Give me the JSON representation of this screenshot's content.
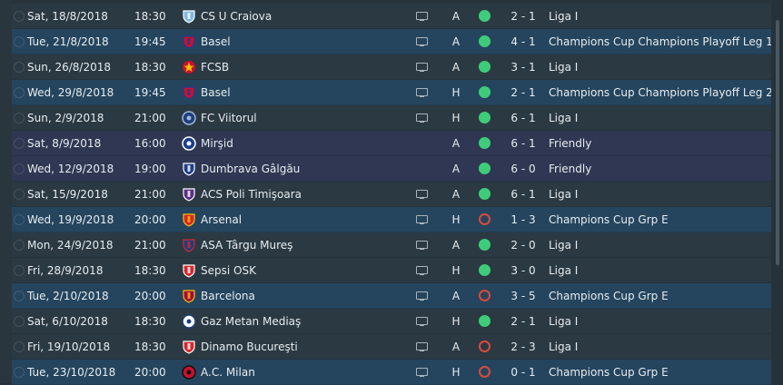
{
  "colors": {
    "row_default": "#2b3942",
    "row_competition": "#25455e",
    "row_friendly": "#2f3752",
    "win": "#3fcc7a",
    "loss": "#d94a3b"
  },
  "fixtures": [
    {
      "date": "Sat, 18/8/2018",
      "time": "18:30",
      "opponent": "CS U Craiova",
      "crest": "craiova-crest-icon",
      "tv": true,
      "venue": "A",
      "result": "win",
      "score": "2 - 1",
      "competition": "Liga I",
      "row": "default"
    },
    {
      "date": "Tue, 21/8/2018",
      "time": "19:45",
      "opponent": "Basel",
      "crest": "basel-crest-icon",
      "tv": true,
      "venue": "A",
      "result": "win",
      "score": "4 - 1",
      "competition": "Champions Cup Champions Playoff Leg 1",
      "row": "comp"
    },
    {
      "date": "Sun, 26/8/2018",
      "time": "18:30",
      "opponent": "FCSB",
      "crest": "fcsb-crest-icon",
      "tv": true,
      "venue": "A",
      "result": "win",
      "score": "3 - 1",
      "competition": "Liga I",
      "row": "default"
    },
    {
      "date": "Wed, 29/8/2018",
      "time": "19:45",
      "opponent": "Basel",
      "crest": "basel-crest-icon",
      "tv": true,
      "venue": "H",
      "result": "win",
      "score": "2 - 1",
      "competition": "Champions Cup Champions Playoff Leg 2",
      "row": "comp"
    },
    {
      "date": "Sun, 2/9/2018",
      "time": "21:00",
      "opponent": "FC Viitorul",
      "crest": "viitorul-crest-icon",
      "tv": true,
      "venue": "H",
      "result": "win",
      "score": "6 - 1",
      "competition": "Liga I",
      "row": "default"
    },
    {
      "date": "Sat, 8/9/2018",
      "time": "16:00",
      "opponent": "Mirşid",
      "crest": "mirsid-crest-icon",
      "tv": false,
      "venue": "A",
      "result": "win",
      "score": "6 - 1",
      "competition": "Friendly",
      "row": "friendly"
    },
    {
      "date": "Wed, 12/9/2018",
      "time": "19:00",
      "opponent": "Dumbrava Gâlgău",
      "crest": "dumbrava-crest-icon",
      "tv": false,
      "venue": "A",
      "result": "win",
      "score": "6 - 0",
      "competition": "Friendly",
      "row": "friendly"
    },
    {
      "date": "Sat, 15/9/2018",
      "time": "21:00",
      "opponent": "ACS Poli Timişoara",
      "crest": "poli-timisoara-crest-icon",
      "tv": true,
      "venue": "A",
      "result": "win",
      "score": "6 - 1",
      "competition": "Liga I",
      "row": "default"
    },
    {
      "date": "Wed, 19/9/2018",
      "time": "20:00",
      "opponent": "Arsenal",
      "crest": "arsenal-crest-icon",
      "tv": true,
      "venue": "H",
      "result": "loss",
      "score": "1 - 3",
      "competition": "Champions Cup Grp E",
      "row": "comp"
    },
    {
      "date": "Mon, 24/9/2018",
      "time": "21:00",
      "opponent": "ASA Târgu Mureş",
      "crest": "asa-targu-mures-crest-icon",
      "tv": true,
      "venue": "A",
      "result": "win",
      "score": "2 - 0",
      "competition": "Liga I",
      "row": "default"
    },
    {
      "date": "Fri, 28/9/2018",
      "time": "18:30",
      "opponent": "Sepsi OSK",
      "crest": "sepsi-crest-icon",
      "tv": true,
      "venue": "H",
      "result": "win",
      "score": "3 - 0",
      "competition": "Liga I",
      "row": "default"
    },
    {
      "date": "Tue, 2/10/2018",
      "time": "20:00",
      "opponent": "Barcelona",
      "crest": "barcelona-crest-icon",
      "tv": true,
      "venue": "A",
      "result": "loss",
      "score": "3 - 5",
      "competition": "Champions Cup Grp E",
      "row": "comp"
    },
    {
      "date": "Sat, 6/10/2018",
      "time": "18:30",
      "opponent": "Gaz Metan Mediaş",
      "crest": "gaz-metan-crest-icon",
      "tv": true,
      "venue": "H",
      "result": "win",
      "score": "2 - 1",
      "competition": "Liga I",
      "row": "default"
    },
    {
      "date": "Fri, 19/10/2018",
      "time": "18:30",
      "opponent": "Dinamo Bucureşti",
      "crest": "dinamo-crest-icon",
      "tv": true,
      "venue": "A",
      "result": "loss",
      "score": "2 - 3",
      "competition": "Liga I",
      "row": "default"
    },
    {
      "date": "Tue, 23/10/2018",
      "time": "20:00",
      "opponent": "A.C. Milan",
      "crest": "milan-crest-icon",
      "tv": true,
      "venue": "H",
      "result": "loss",
      "score": "0 - 1",
      "competition": "Champions Cup Grp E",
      "row": "comp"
    }
  ]
}
